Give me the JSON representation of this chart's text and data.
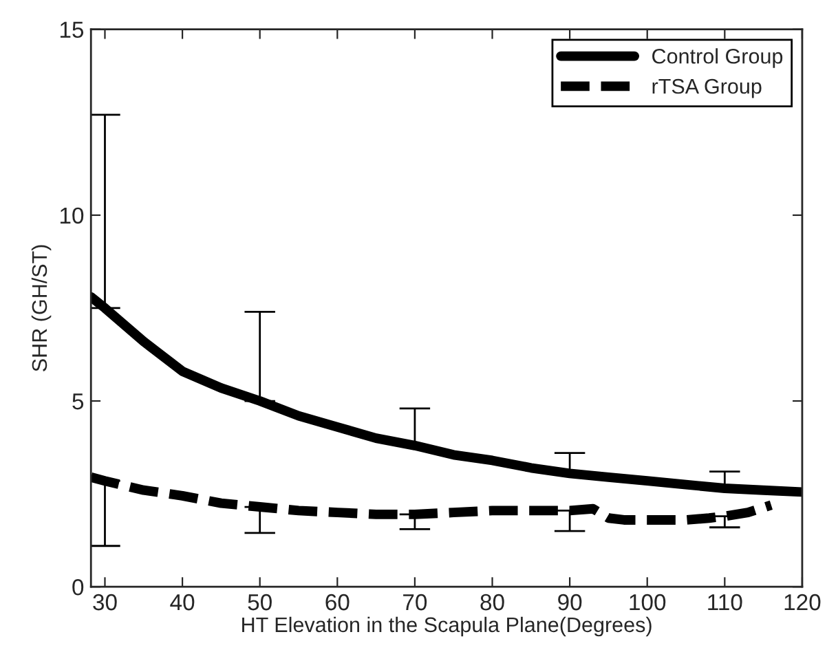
{
  "chart_data": {
    "type": "line",
    "xlabel": "HT Elevation in the Scapula Plane(Degrees)",
    "ylabel": "SHR (GH/ST)",
    "xlim": [
      28.2,
      120
    ],
    "ylim": [
      0,
      15
    ],
    "xticks": [
      30,
      40,
      50,
      60,
      70,
      80,
      90,
      100,
      110,
      120
    ],
    "yticks": [
      0,
      5,
      10,
      15
    ],
    "grid": false,
    "legend": "top right",
    "series": [
      {
        "name": "Control Group",
        "color": "#000000",
        "line_style": "solid",
        "x": [
          28.2,
          30,
          35,
          40,
          45,
          50,
          55,
          60,
          65,
          70,
          75,
          80,
          85,
          90,
          95,
          100,
          105,
          110,
          115,
          120
        ],
        "values": [
          7.8,
          7.5,
          6.6,
          5.8,
          5.35,
          5.0,
          4.6,
          4.3,
          4.0,
          3.8,
          3.55,
          3.4,
          3.2,
          3.05,
          2.95,
          2.85,
          2.75,
          2.65,
          2.6,
          2.55
        ],
        "errors": [
          null,
          [
            7.5,
            12.7
          ],
          null,
          null,
          null,
          [
            5.0,
            7.4
          ],
          null,
          null,
          null,
          [
            3.8,
            4.8
          ],
          null,
          null,
          null,
          [
            3.05,
            3.6
          ],
          null,
          null,
          null,
          [
            2.65,
            3.1
          ],
          null,
          null
        ]
      },
      {
        "name": "rTSA Group",
        "color": "#000000",
        "line_style": "dashed",
        "x": [
          28.2,
          30,
          35,
          40,
          45,
          50,
          55,
          60,
          65,
          70,
          75,
          80,
          85,
          90,
          93,
          95,
          97,
          100,
          105,
          108,
          110,
          113,
          116
        ],
        "values": [
          2.95,
          2.85,
          2.6,
          2.45,
          2.25,
          2.15,
          2.05,
          2.0,
          1.95,
          1.95,
          2.0,
          2.05,
          2.05,
          2.05,
          2.1,
          1.85,
          1.8,
          1.8,
          1.8,
          1.85,
          1.9,
          2.0,
          2.2
        ],
        "errors": [
          null,
          [
            1.1,
            2.85
          ],
          null,
          null,
          null,
          [
            1.45,
            2.15
          ],
          null,
          null,
          null,
          [
            1.55,
            1.95
          ],
          null,
          null,
          null,
          [
            1.5,
            2.05
          ],
          null,
          null,
          null,
          null,
          null,
          null,
          [
            1.6,
            1.9
          ],
          null,
          null
        ]
      }
    ]
  }
}
